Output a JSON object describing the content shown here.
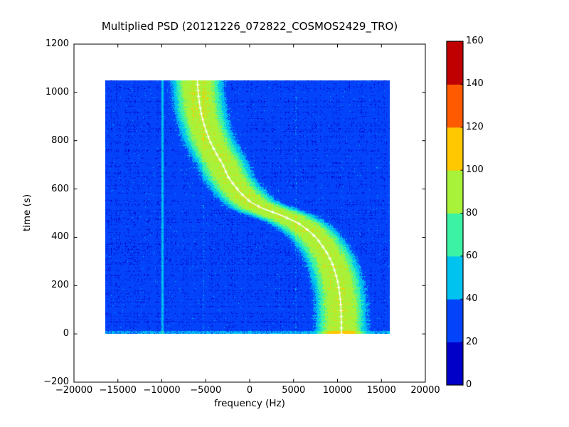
{
  "chart_data": {
    "type": "heatmap",
    "title": "Multiplied PSD (20121226_072822_COSMOS2429_TRO)",
    "xlabel": "frequency (Hz)",
    "ylabel": "time (s)",
    "xlim": [
      -20000,
      20000
    ],
    "ylim": [
      -200,
      1200
    ],
    "grid": false,
    "xticks": {
      "values": [
        -20000,
        -15000,
        -10000,
        -5000,
        0,
        5000,
        10000,
        15000,
        20000
      ],
      "labels": [
        "−20000",
        "−15000",
        "−10000",
        "−5000",
        "0",
        "5000",
        "10000",
        "15000",
        "20000"
      ]
    },
    "yticks": {
      "values": [
        -200,
        0,
        200,
        400,
        600,
        800,
        1000,
        1200
      ],
      "labels": [
        "−200",
        "0",
        "200",
        "400",
        "600",
        "800",
        "1000",
        "1200"
      ]
    },
    "extent": {
      "freq_hz": [
        -16400,
        16000
      ],
      "time_s": [
        0,
        1050
      ]
    },
    "background_value": 28,
    "peak_amplitude": 66,
    "peak_halfwidth_hz": 2600,
    "smear_time_s": 30,
    "doppler_track": [
      [
        0,
        10500
      ],
      [
        50,
        10480
      ],
      [
        100,
        10450
      ],
      [
        140,
        10380
      ],
      [
        180,
        10250
      ],
      [
        220,
        10050
      ],
      [
        260,
        9750
      ],
      [
        300,
        9350
      ],
      [
        335,
        8850
      ],
      [
        365,
        8300
      ],
      [
        395,
        7700
      ],
      [
        420,
        7000
      ],
      [
        440,
        6300
      ],
      [
        460,
        5500
      ],
      [
        475,
        4600
      ],
      [
        490,
        3700
      ],
      [
        505,
        2600
      ],
      [
        520,
        1500
      ],
      [
        535,
        700
      ],
      [
        545,
        200
      ],
      [
        555,
        -150
      ],
      [
        570,
        -600
      ],
      [
        590,
        -1150
      ],
      [
        620,
        -1800
      ],
      [
        650,
        -2400
      ],
      [
        700,
        -3000
      ],
      [
        750,
        -3800
      ],
      [
        800,
        -4500
      ],
      [
        850,
        -5000
      ],
      [
        900,
        -5400
      ],
      [
        950,
        -5650
      ],
      [
        1000,
        -5820
      ],
      [
        1050,
        -5920
      ]
    ],
    "track_color": "#ffffff",
    "track_marker": "plus",
    "track_marker_step_s": 24,
    "artifact_lines": [
      {
        "freq_hz": -9900,
        "halfwidth_hz": 110,
        "boost": 20
      },
      {
        "freq_hz": -5250,
        "halfwidth_hz": 90,
        "boost": 6
      },
      {
        "freq_hz": 5300,
        "halfwidth_hz": 90,
        "boost": 7
      }
    ],
    "colorbar": {
      "levels": [
        0,
        20,
        40,
        60,
        80,
        100,
        120,
        140,
        160
      ],
      "colors": [
        "#0000c8",
        "#0343fa",
        "#00c3f0",
        "#3cf3a5",
        "#a8f23a",
        "#ffc800",
        "#ff5a00",
        "#c00000"
      ],
      "tick_labels": [
        "0",
        "20",
        "40",
        "60",
        "80",
        "100",
        "120",
        "140",
        "160"
      ],
      "position": "right"
    }
  }
}
